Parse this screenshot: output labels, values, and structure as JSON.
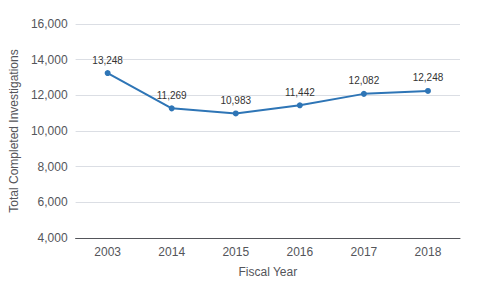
{
  "chart_data": {
    "type": "line",
    "xlabel": "Fiscal Year",
    "ylabel": "Total Completed Investigations",
    "categories": [
      "2003",
      "2014",
      "2015",
      "2016",
      "2017",
      "2018"
    ],
    "values": [
      13248,
      11269,
      10983,
      11442,
      12082,
      12248
    ],
    "value_labels": [
      "13,248",
      "11,269",
      "10,983",
      "11,442",
      "12,082",
      "12,248"
    ],
    "data_labels": true,
    "color": "#2E75B6",
    "marker": "circle",
    "ylim": [
      4000,
      16000
    ],
    "yticks": [
      {
        "value": 4000,
        "label": "4,000"
      },
      {
        "value": 6000,
        "label": "6,000"
      },
      {
        "value": 8000,
        "label": "8,000"
      },
      {
        "value": 10000,
        "label": "10,000"
      },
      {
        "value": 12000,
        "label": "12,000"
      },
      {
        "value": 14000,
        "label": "14,000"
      },
      {
        "value": 16000,
        "label": "16,000"
      }
    ],
    "grid": true
  }
}
